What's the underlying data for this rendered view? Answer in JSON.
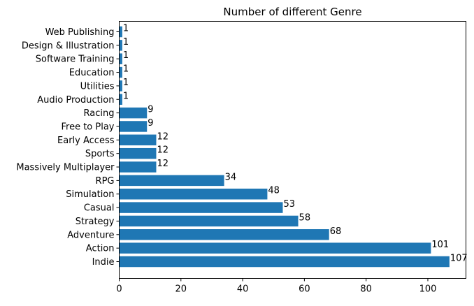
{
  "chart_data": {
    "type": "bar",
    "orientation": "horizontal",
    "title": "Number of different Genre",
    "xlabel": "",
    "ylabel": "",
    "categories": [
      "Indie",
      "Action",
      "Adventure",
      "Strategy",
      "Casual",
      "Simulation",
      "RPG",
      "Massively Multiplayer",
      "Sports",
      "Early Access",
      "Free to Play",
      "Racing",
      "Audio Production",
      "Utilities",
      "Education",
      "Software Training",
      "Design & Illustration",
      "Web Publishing"
    ],
    "values": [
      107,
      101,
      68,
      58,
      53,
      48,
      34,
      12,
      12,
      12,
      9,
      9,
      1,
      1,
      1,
      1,
      1,
      1
    ],
    "xlim": [
      0,
      112.35
    ],
    "xticks": [
      0,
      20,
      40,
      60,
      80,
      100
    ],
    "bar_color": "#1f77b4",
    "grid": false,
    "legend": "none"
  }
}
